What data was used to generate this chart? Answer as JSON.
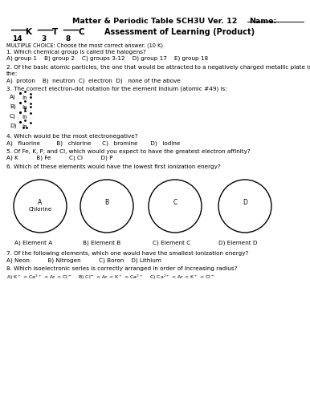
{
  "bg_color": "#ffffff",
  "title": "Matter & Periodic Table SCH3U Ver. 12",
  "name_label": "Name:",
  "assessment": "Assessment of Learning (Product)",
  "kt_nums": [
    "14",
    "3",
    "8"
  ],
  "section": "MULTIPLE CHOICE: Choose the most correct answer. (10 K)",
  "q1": "1. Which chemical group is called the halogens?",
  "q1a": "A) group 1    B) group 2    C) groups 3-12    D) group 17    E) group 18",
  "q2": "2. Of the basic atomic particles, the one that would be attracted to a negatively charged metallic plate is",
  "q2b": "the:",
  "q2a": "A)  proton    B)  neutron  C)  electron  D)   none of the above",
  "q3": "3. The correct electron-dot notation for the element indium (atomic #49) is:",
  "q4": "4. Which would be the most electronegative?",
  "q4a": "A)   fluorine         B)   chlorine      C)   bromine       D)   iodine",
  "q5": "5. Of Fe, K, P, and Cl, which would you expect to have the greatest electron affinity?",
  "q5a": "A) K          B) Fe          C) Cl          D) P",
  "q6": "6. Which of these elements would have the lowest first ionization energy?",
  "circle_labels": [
    "A\nChlorine",
    "B",
    "C",
    "D"
  ],
  "q6a": "A) Element A         B) Element B        C) Element C        D) Element D",
  "q7": "7. Of the following elements, which one would have the smallest ionization energy?",
  "q7a": "A) Neon          B) Nitrogen          C) Boron    D) Lithium",
  "q8": "8. Which isoelectronic series is correctly arranged in order of increasing radius?"
}
